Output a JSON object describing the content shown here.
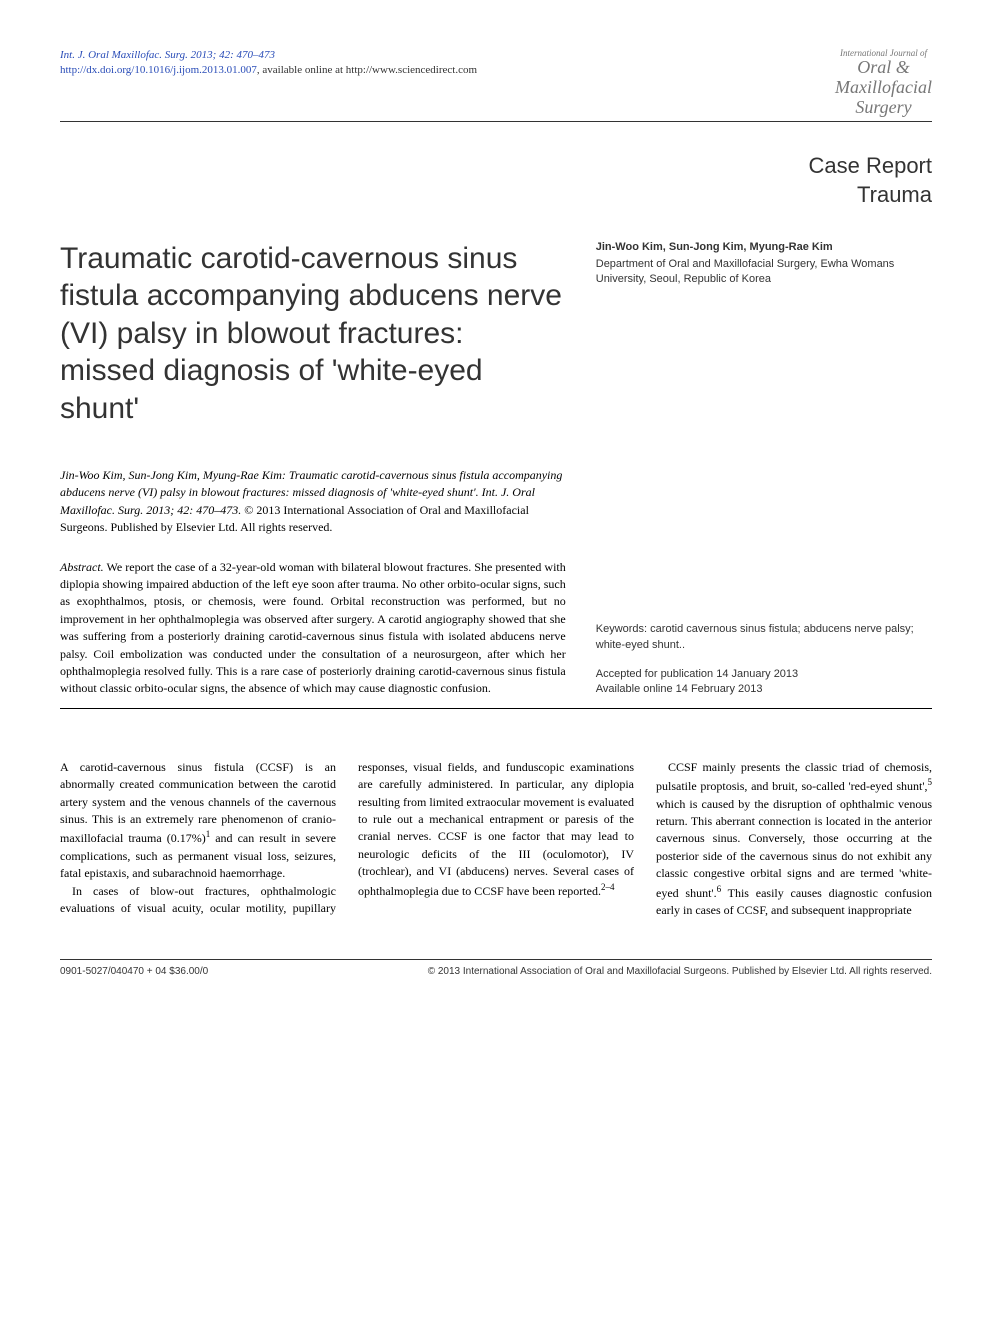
{
  "header": {
    "citation_line1": "Int. J. Oral Maxillofac. Surg. 2013; 42: 470–473",
    "citation_line2_prefix": "http://dx.doi.org/10.1016/j.ijom.2013.01.007",
    "citation_line2_suffix": ", available online at http://www.sciencedirect.com",
    "journal_small": "International Journal of",
    "journal_name1": "Oral &",
    "journal_name2": "Maxillofacial",
    "journal_name3": "Surgery"
  },
  "labels": {
    "case_report": "Case Report",
    "trauma": "Trauma"
  },
  "title": "Traumatic carotid-cavernous sinus fistula accompanying abducens nerve (VI) palsy in blowout fractures: missed diagnosis of 'white-eyed shunt'",
  "authors": {
    "names": "Jin-Woo Kim, Sun-Jong Kim, Myung-Rae Kim",
    "affiliation": "Department of Oral and Maxillofacial Surgery, Ewha Womans University, Seoul, Republic of Korea"
  },
  "citeblock": {
    "italic": "Jin-Woo Kim, Sun-Jong Kim, Myung-Rae Kim: Traumatic carotid-cavernous sinus fistula accompanying abducens nerve (VI) palsy in blowout fractures: missed diagnosis of 'white-eyed shunt'. Int. J. Oral Maxillofac. Surg. 2013; 42: 470–473.",
    "copyright": "© 2013 International Association of Oral and Maxillofacial Surgeons. Published by Elsevier Ltd. All rights reserved."
  },
  "abstract": {
    "label": "Abstract.",
    "text": " We report the case of a 32-year-old woman with bilateral blowout fractures. She presented with diplopia showing impaired abduction of the left eye soon after trauma. No other orbito-ocular signs, such as exophthalmos, ptosis, or chemosis, were found. Orbital reconstruction was performed, but no improvement in her ophthalmoplegia was observed after surgery. A carotid angiography showed that she was suffering from a posteriorly draining carotid-cavernous sinus fistula with isolated abducens nerve palsy. Coil embolization was conducted under the consultation of a neurosurgeon, after which her ophthalmoplegia resolved fully. This is a rare case of posteriorly draining carotid-cavernous sinus fistula without classic orbito-ocular signs, the absence of which may cause diagnostic confusion."
  },
  "keywords": {
    "label": "Keywords:",
    "text": " carotid cavernous sinus fistula; abducens nerve palsy; white-eyed shunt.."
  },
  "accepted": "Accepted for publication 14 January 2013",
  "online": "Available online 14 February 2013",
  "body": {
    "p1a": "A carotid-cavernous sinus fistula (CCSF) is an abnormally created communication between the carotid artery system and the venous channels of the cavernous sinus. This is an extremely rare phenomenon of cranio-maxillofacial trauma (0.17%)",
    "p1_ref1": "1",
    "p1b": " and can result in severe complications, such as permanent visual loss, seizures, fatal epistaxis, and subarachnoid haemorrhage.",
    "p2a": "In cases of blow-out fractures, ophthalmologic evaluations of visual acuity, ocular motility, pupillary responses, visual fields, and funduscopic examinations are carefully administered. In particular, any diplopia resulting from limited extraocular movement is evaluated to rule out a mechanical entrapment or paresis of the cranial nerves. CCSF is one factor that may lead to neurologic deficits of the III (oculomotor), IV (trochlear), and VI (abducens) nerves. Several cases of ophthalmoplegia due to CCSF have been reported.",
    "p2_ref": "2–4",
    "p3a": "CCSF mainly presents the classic triad of chemosis, pulsatile proptosis, and bruit, so-called 'red-eyed shunt',",
    "p3_ref1": "5",
    "p3b": " which is caused by the disruption of ophthalmic venous return. This aberrant connection is located in the anterior cavernous sinus. Conversely, those occurring at the posterior side of the cavernous sinus do not exhibit any classic congestive orbital signs and are termed 'white-eyed shunt'.",
    "p3_ref2": "6",
    "p3c": " This easily causes diagnostic confusion early in cases of CCSF, and subsequent inappropriate"
  },
  "footer": {
    "left": "0901-5027/040470 + 04 $36.00/0",
    "right": "© 2013 International Association of Oral and Maxillofacial Surgeons. Published by Elsevier Ltd. All rights reserved."
  }
}
